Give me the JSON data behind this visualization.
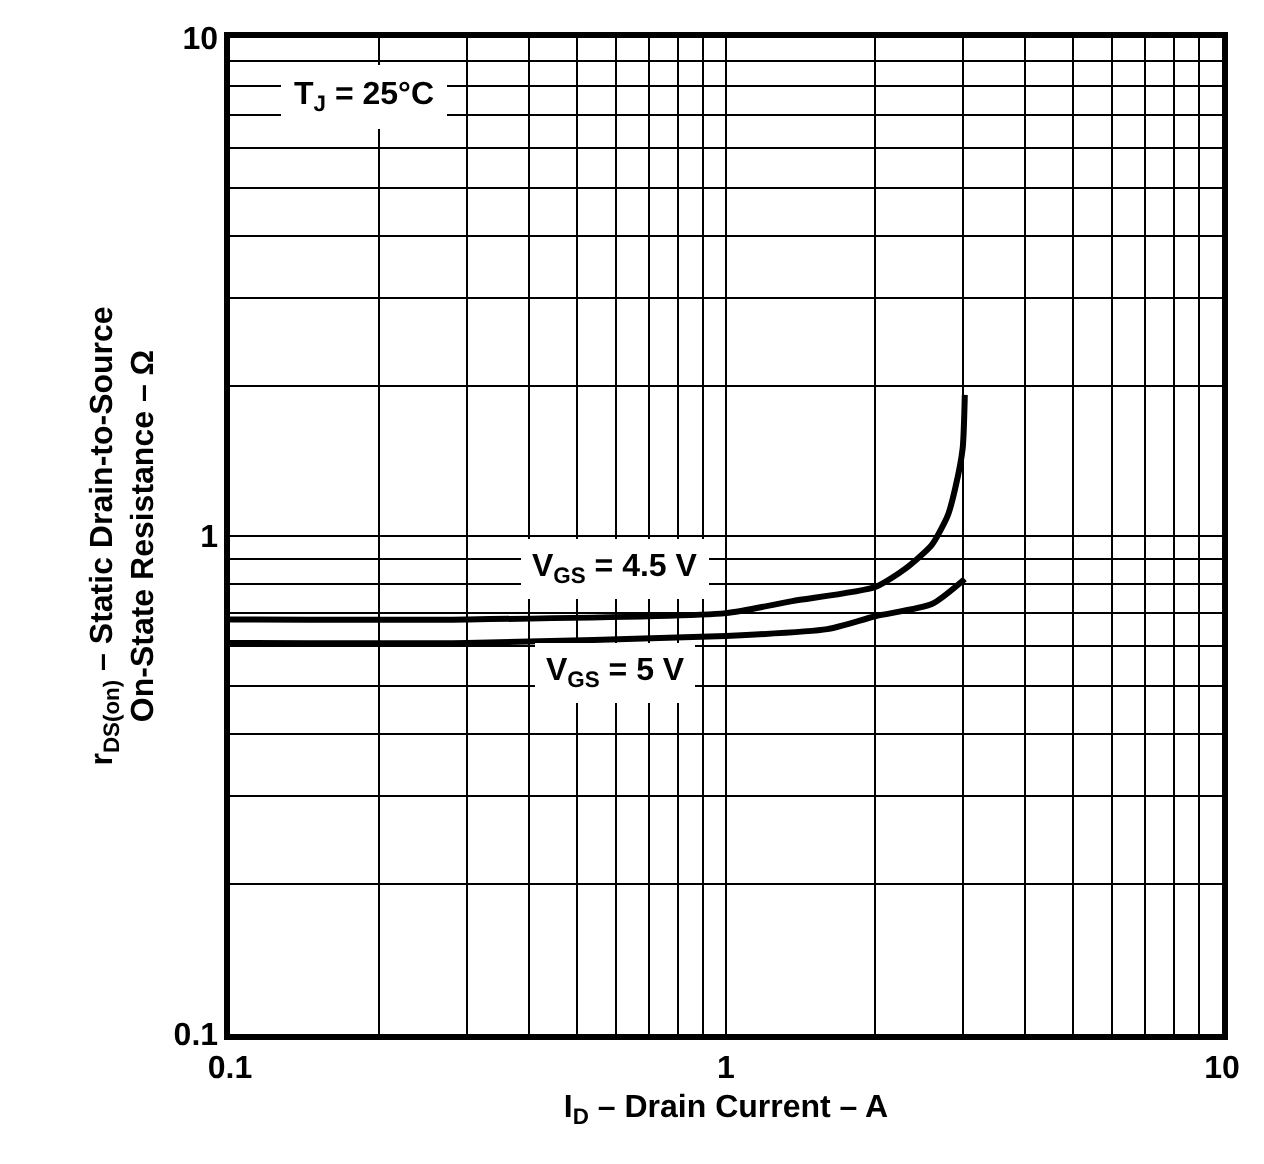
{
  "chart_data": {
    "type": "line",
    "xlabel": "I$_{D}$ – Drain Current – A",
    "ylabel": "r$_{DS(on)}$ – Static Drain-to-Source\nOn-State Resistance – Ω",
    "log": "xy",
    "grid": true,
    "legend": false,
    "marker": "none",
    "line_style": "solid",
    "xlim": [
      0.1,
      10
    ],
    "xticks": [
      0.1,
      1,
      10
    ],
    "ylim": [
      0.1,
      10
    ],
    "yticks": [
      0.1,
      1,
      10
    ],
    "annotations": [
      "T$_{J}$ = 25°C"
    ],
    "series": [
      {
        "name": "V$_{GS}$ = 4.5 V",
        "color": "#000000",
        "x": [
          0.1,
          0.3,
          1,
          1.36,
          2,
          2.3,
          2.6,
          2.8,
          2.9,
          3.0,
          3.03
        ],
        "values": [
          0.68,
          0.68,
          0.7,
          0.74,
          0.79,
          0.86,
          0.96,
          1.1,
          1.25,
          1.5,
          1.92
        ]
      },
      {
        "name": "V$_{GS}$ = 5 V",
        "color": "#000000",
        "x": [
          0.1,
          0.3,
          1,
          1.6,
          2,
          2.6,
          3.03
        ],
        "values": [
          0.61,
          0.61,
          0.63,
          0.65,
          0.69,
          0.73,
          0.82
        ]
      }
    ]
  }
}
